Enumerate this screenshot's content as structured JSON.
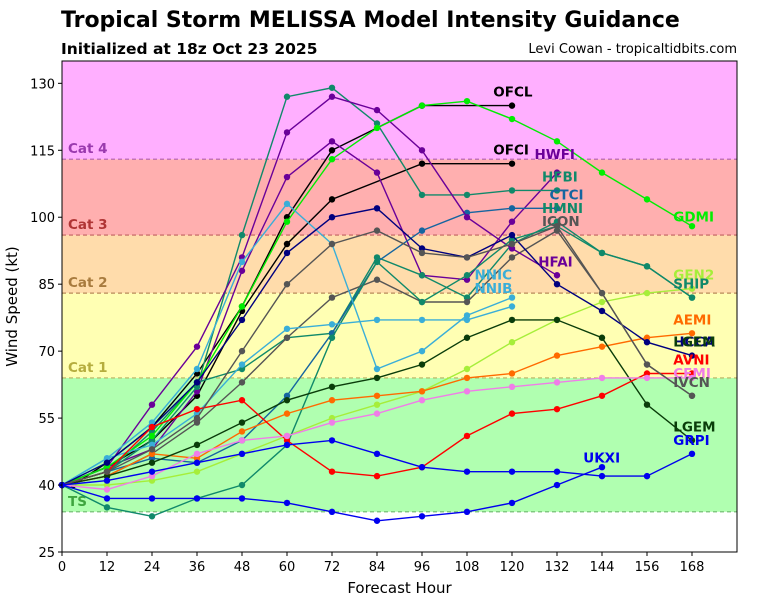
{
  "header": {
    "title": "Tropical Storm MELISSA Model Intensity Guidance",
    "subtitle": "Initialized at 18z Oct 23 2025",
    "credit": "Levi Cowan - tropicaltidbits.com"
  },
  "chart_data": {
    "type": "line",
    "title": "Tropical Storm MELISSA Model Intensity Guidance",
    "subtitle": "Initialized at 18z Oct 23 2025",
    "xlabel": "Forecast Hour",
    "ylabel": "Wind Speed (kt)",
    "xlim": [
      0,
      180
    ],
    "ylim": [
      25,
      135
    ],
    "xticks": [
      0,
      12,
      24,
      36,
      48,
      60,
      72,
      84,
      96,
      108,
      120,
      132,
      144,
      156,
      168
    ],
    "yticks": [
      25,
      40,
      55,
      70,
      85,
      100,
      115,
      130
    ],
    "grid": false,
    "bands": [
      {
        "name": "TS",
        "from": 34,
        "to": 64,
        "color": "#b0ffb0",
        "line_color": "#6fb86f",
        "label_color": "#3ea53e"
      },
      {
        "name": "Cat 1",
        "from": 64,
        "to": 83,
        "color": "#ffffb3",
        "line_color": "#b8b060",
        "label_color": "#b5ad3e"
      },
      {
        "name": "Cat 2",
        "from": 83,
        "to": 96,
        "color": "#ffdcab",
        "line_color": "#b88a5a",
        "label_color": "#a87b3e"
      },
      {
        "name": "Cat 3",
        "from": 96,
        "to": 113,
        "color": "#ffafaf",
        "line_color": "#c06060",
        "label_color": "#b03535"
      },
      {
        "name": "Cat 4",
        "from": 113,
        "to": 135,
        "color": "#ffafff",
        "line_color": "#b060b0",
        "label_color": "#9a3aae"
      }
    ],
    "series": [
      {
        "name": "OFCL",
        "color": "#000000",
        "x": [
          0,
          3,
          12,
          24,
          36,
          48,
          60,
          72,
          96,
          120
        ],
        "y": [
          40,
          40,
          45,
          53,
          65,
          80,
          100,
          115,
          125,
          125
        ]
      },
      {
        "name": "OFCI",
        "color": "#000000",
        "x": [
          0,
          12,
          24,
          36,
          48,
          60,
          72,
          96,
          120
        ],
        "y": [
          40,
          44,
          50,
          60,
          79,
          94,
          104,
          112,
          112
        ]
      },
      {
        "name": "HWFI",
        "color": "#6a0099",
        "x": [
          0,
          12,
          24,
          36,
          48,
          60,
          72,
          84,
          96,
          108,
          120,
          132
        ],
        "y": [
          40,
          44,
          48,
          61,
          88,
          109,
          117,
          110,
          87,
          86,
          99,
          110
        ]
      },
      {
        "name": "HFBI",
        "color": "#10896a",
        "x": [
          0,
          12,
          24,
          36,
          48,
          60,
          72,
          84,
          96,
          108,
          120,
          132
        ],
        "y": [
          40,
          43,
          50,
          62,
          96,
          127,
          129,
          121,
          105,
          105,
          106,
          106
        ]
      },
      {
        "name": "HMNI",
        "color": "#10896a",
        "x": [
          0,
          12,
          24,
          36,
          48,
          60,
          72,
          84,
          96,
          108,
          120,
          132,
          144,
          156,
          168
        ],
        "y": [
          40,
          43,
          52,
          63,
          66,
          73,
          74,
          91,
          87,
          82,
          94,
          99,
          92,
          89,
          82
        ]
      },
      {
        "name": "CTCI",
        "color": "#1565a0",
        "x": [
          0,
          12,
          24,
          36,
          48,
          60,
          72,
          84,
          96,
          108,
          120,
          132
        ],
        "y": [
          40,
          43,
          46,
          45,
          50,
          60,
          74,
          90,
          97,
          101,
          102,
          102
        ]
      },
      {
        "name": "ICON",
        "color": "#555555",
        "x": [
          0,
          12,
          24,
          36,
          48,
          60,
          72,
          84,
          96,
          108,
          120,
          132,
          144,
          156,
          168
        ],
        "y": [
          40,
          42,
          47,
          54,
          63,
          73,
          82,
          86,
          81,
          81,
          91,
          97,
          83,
          67,
          60
        ]
      },
      {
        "name": "HFAI",
        "color": "#6a0099",
        "x": [
          0,
          12,
          24,
          36,
          48,
          60,
          72,
          84,
          96,
          108,
          120,
          132
        ],
        "y": [
          40,
          44,
          58,
          71,
          91,
          119,
          127,
          124,
          115,
          100,
          93,
          87
        ]
      },
      {
        "name": "GDMI",
        "color": "#00ee00",
        "x": [
          0,
          12,
          24,
          36,
          48,
          60,
          72,
          84,
          96,
          108,
          120,
          132,
          144,
          156,
          168
        ],
        "y": [
          40,
          44,
          51,
          63,
          80,
          99,
          113,
          120,
          125,
          126,
          122,
          117,
          110,
          104,
          98
        ]
      },
      {
        "name": "GEN2",
        "color": "#a6ee3a",
        "x": [
          0,
          12,
          24,
          36,
          48,
          60,
          72,
          84,
          96,
          108,
          120,
          132,
          144,
          156,
          168
        ],
        "y": [
          40,
          40,
          41,
          43,
          47,
          51,
          55,
          58,
          61,
          66,
          72,
          77,
          81,
          83,
          84
        ]
      },
      {
        "name": "SHIP",
        "color": "#10896a",
        "x": [
          0,
          12,
          24,
          36,
          48,
          60,
          72,
          84,
          96,
          108,
          120,
          132,
          144,
          156,
          168
        ],
        "y": [
          40,
          35,
          33,
          37,
          40,
          49,
          73,
          90,
          81,
          87,
          95,
          98,
          92,
          89,
          82
        ]
      },
      {
        "name": "NNIC",
        "color": "#3aaed8",
        "x": [
          0,
          12,
          24,
          36,
          48,
          60,
          72,
          84,
          96,
          108,
          120
        ],
        "y": [
          40,
          46,
          54,
          66,
          90,
          103,
          94,
          66,
          70,
          78,
          82
        ]
      },
      {
        "name": "NNIB",
        "color": "#3aaed8",
        "x": [
          0,
          12,
          24,
          36,
          48,
          60,
          72,
          84,
          96,
          108,
          120
        ],
        "y": [
          40,
          46,
          49,
          56,
          67,
          75,
          76,
          77,
          77,
          77,
          80
        ]
      },
      {
        "name": "AEMI",
        "color": "#ff6a00",
        "x": [
          0,
          12,
          24,
          36,
          48,
          60,
          72,
          84,
          96,
          108,
          120,
          132,
          144,
          156,
          168
        ],
        "y": [
          40,
          42,
          47,
          46,
          52,
          56,
          59,
          60,
          61,
          64,
          65,
          69,
          71,
          73,
          74
        ]
      },
      {
        "name": "HCCA",
        "color": "#00007f",
        "x": [
          0,
          12,
          24,
          36,
          48,
          60,
          72,
          84,
          96,
          108,
          120,
          132,
          144,
          156,
          168
        ],
        "y": [
          40,
          45,
          53,
          63,
          77,
          92,
          100,
          102,
          93,
          91,
          96,
          85,
          79,
          72,
          69
        ]
      },
      {
        "name": "LGEM",
        "color": "#0a3d0a",
        "x": [
          0,
          12,
          24,
          36,
          48,
          60,
          72,
          84,
          96,
          108,
          120,
          132,
          144,
          156,
          168
        ],
        "y": [
          40,
          42,
          45,
          49,
          54,
          59,
          62,
          64,
          67,
          73,
          77,
          77,
          73,
          58,
          50
        ]
      },
      {
        "name": "AVNI",
        "color": "#ff0000",
        "x": [
          0,
          12,
          24,
          36,
          48,
          60,
          72,
          84,
          96,
          108,
          120,
          132,
          144,
          156,
          168
        ],
        "y": [
          40,
          43,
          53,
          57,
          59,
          50,
          43,
          42,
          44,
          51,
          56,
          57,
          60,
          65,
          65
        ]
      },
      {
        "name": "CEMI",
        "color": "#f07de8",
        "x": [
          0,
          12,
          24,
          36,
          48,
          60,
          72,
          84,
          96,
          108,
          120,
          132,
          144,
          156,
          168
        ],
        "y": [
          40,
          39,
          42,
          47,
          50,
          51,
          54,
          56,
          59,
          61,
          62,
          63,
          64,
          64,
          64
        ]
      },
      {
        "name": "IVCN",
        "color": "#555555",
        "x": [
          0,
          12,
          24,
          36,
          48,
          60,
          72,
          84,
          96,
          108,
          120,
          132,
          144,
          156,
          168
        ],
        "y": [
          40,
          43,
          48,
          55,
          70,
          85,
          94,
          97,
          92,
          91,
          94,
          98,
          83,
          67,
          60
        ]
      },
      {
        "name": "UKXI",
        "color": "#0000ee",
        "x": [
          0,
          12,
          24,
          36,
          48,
          60,
          72,
          84,
          96,
          108,
          120,
          132,
          144
        ],
        "y": [
          40,
          37,
          37,
          37,
          37,
          36,
          34,
          32,
          33,
          34,
          36,
          40,
          44
        ]
      },
      {
        "name": "GRPI",
        "color": "#0000ee",
        "x": [
          0,
          12,
          24,
          36,
          48,
          60,
          72,
          84,
          96,
          108,
          120,
          132,
          144,
          156,
          168
        ],
        "y": [
          40,
          41,
          43,
          45,
          47,
          49,
          50,
          47,
          44,
          43,
          43,
          43,
          42,
          42,
          47
        ]
      }
    ],
    "labels": [
      {
        "text": "OFCL",
        "color": "#000000",
        "x": 115,
        "y": 127
      },
      {
        "text": "OFCI",
        "color": "#000000",
        "x": 115,
        "y": 114
      },
      {
        "text": "HWFI",
        "color": "#6a0099",
        "x": 126,
        "y": 113
      },
      {
        "text": "HFBI",
        "color": "#10896a",
        "x": 128,
        "y": 108
      },
      {
        "text": "CTCI",
        "color": "#1565a0",
        "x": 130,
        "y": 104
      },
      {
        "text": "HMNI",
        "color": "#10896a",
        "x": 128,
        "y": 101
      },
      {
        "text": "ICON",
        "color": "#555555",
        "x": 128,
        "y": 98
      },
      {
        "text": "GDMI",
        "color": "#00ee00",
        "x": 163,
        "y": 99
      },
      {
        "text": "HFAI",
        "color": "#6a0099",
        "x": 127,
        "y": 89
      },
      {
        "text": "NNIC",
        "color": "#3aaed8",
        "x": 110,
        "y": 86
      },
      {
        "text": "NNIB",
        "color": "#3aaed8",
        "x": 110,
        "y": 83
      },
      {
        "text": "GEN2",
        "color": "#a6ee3a",
        "x": 163,
        "y": 86
      },
      {
        "text": "SHIP",
        "color": "#10896a",
        "x": 163,
        "y": 84
      },
      {
        "text": "AEMI",
        "color": "#ff6a00",
        "x": 163,
        "y": 76
      },
      {
        "text": "HCCA",
        "color": "#00007f",
        "x": 163,
        "y": 71
      },
      {
        "text": "LGEM",
        "color": "#0a3d0a",
        "x": 163,
        "y": 71
      },
      {
        "text": "AVNI",
        "color": "#ff0000",
        "x": 163,
        "y": 67
      },
      {
        "text": "CEMI",
        "color": "#f07de8",
        "x": 163,
        "y": 64
      },
      {
        "text": "IVCN",
        "color": "#555555",
        "x": 163,
        "y": 62
      },
      {
        "text": "LGEM",
        "color": "#0a3d0a",
        "x": 163,
        "y": 52
      },
      {
        "text": "GRPI",
        "color": "#0000ee",
        "x": 163,
        "y": 49
      },
      {
        "text": "UKXI",
        "color": "#0000ee",
        "x": 139,
        "y": 45
      }
    ]
  }
}
